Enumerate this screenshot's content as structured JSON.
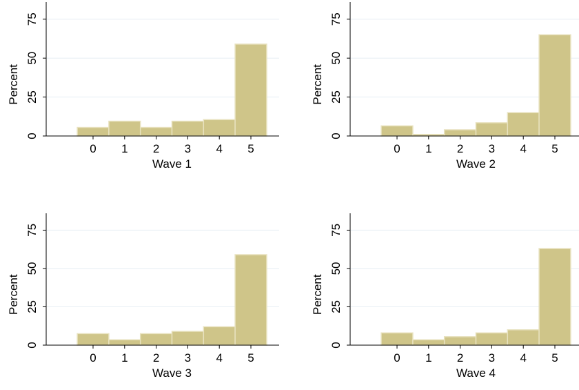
{
  "style": {
    "bar_fill": "#cfc589",
    "bar_stroke": "#e8e2bf",
    "grid_color": "#e6eef3",
    "axis_color": "#000000"
  },
  "chart_data": [
    {
      "type": "bar",
      "xlabel": "Wave 1",
      "ylabel": "Percent",
      "categories": [
        "0",
        "1",
        "2",
        "3",
        "4",
        "5"
      ],
      "values": [
        5.5,
        9.5,
        5.5,
        9.5,
        10.5,
        59
      ],
      "yticks": [
        "0",
        "25",
        "50",
        "75"
      ],
      "ylim": [
        0,
        86
      ],
      "grid": true
    },
    {
      "type": "bar",
      "xlabel": "Wave 2",
      "ylabel": "Percent",
      "categories": [
        "0",
        "1",
        "2",
        "3",
        "4",
        "5"
      ],
      "values": [
        6.5,
        1,
        4,
        8.5,
        15,
        65
      ],
      "yticks": [
        "0",
        "25",
        "50",
        "75"
      ],
      "ylim": [
        0,
        86
      ],
      "grid": true
    },
    {
      "type": "bar",
      "xlabel": "Wave 3",
      "ylabel": "Percent",
      "categories": [
        "0",
        "1",
        "2",
        "3",
        "4",
        "5"
      ],
      "values": [
        7.5,
        3.5,
        7.5,
        9,
        12,
        59
      ],
      "yticks": [
        "0",
        "25",
        "50",
        "75"
      ],
      "ylim": [
        0,
        86
      ],
      "grid": true
    },
    {
      "type": "bar",
      "xlabel": "Wave 4",
      "ylabel": "Percent",
      "categories": [
        "0",
        "1",
        "2",
        "3",
        "4",
        "5"
      ],
      "values": [
        8,
        3.5,
        5.5,
        8,
        10,
        63
      ],
      "yticks": [
        "0",
        "25",
        "50",
        "75"
      ],
      "ylim": [
        0,
        86
      ],
      "grid": true
    }
  ]
}
